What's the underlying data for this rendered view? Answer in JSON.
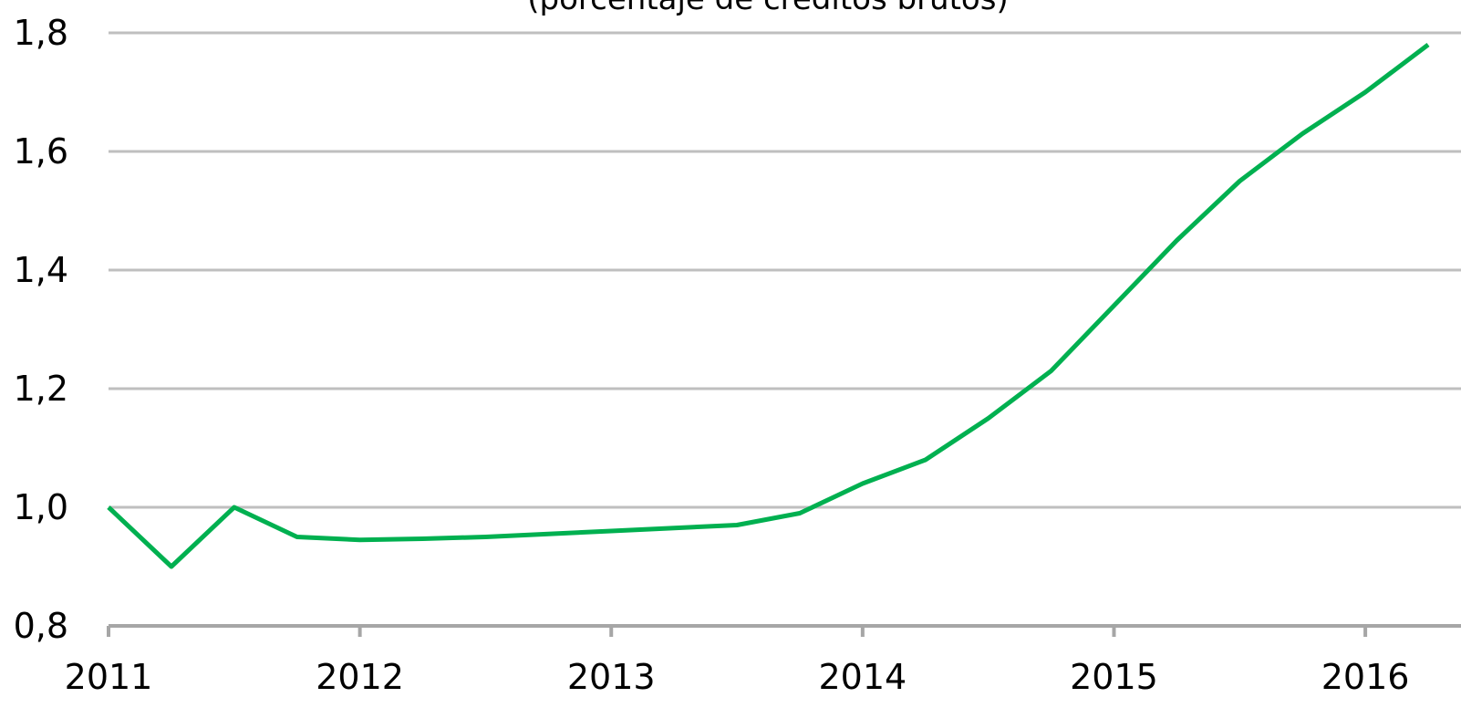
{
  "chart_data": {
    "type": "line",
    "subtitle": "(porcentaje de créditos brutos)",
    "x": [
      2011,
      2011.25,
      2011.5,
      2011.75,
      2012,
      2012.25,
      2012.5,
      2012.75,
      2013,
      2013.25,
      2013.5,
      2013.75,
      2014,
      2014.25,
      2014.5,
      2014.75,
      2015,
      2015.25,
      2015.5,
      2015.75,
      2016,
      2016.25
    ],
    "series": [
      {
        "color": "#00b050",
        "values": [
          1.0,
          0.9,
          1.0,
          0.95,
          0.945,
          0.947,
          0.95,
          0.955,
          0.96,
          0.965,
          0.97,
          0.99,
          1.04,
          1.08,
          1.15,
          1.23,
          1.34,
          1.45,
          1.55,
          1.63,
          1.7,
          1.78
        ]
      }
    ],
    "xlim": [
      2011,
      2016.25
    ],
    "xticks": [
      2011,
      2012,
      2013,
      2014,
      2015,
      2016
    ],
    "ylim": [
      0.8,
      1.8
    ],
    "yticks": [
      {
        "value": 0.8,
        "label": "0,8"
      },
      {
        "value": 1.0,
        "label": "1,0"
      },
      {
        "value": 1.2,
        "label": "1,2"
      },
      {
        "value": 1.4,
        "label": "1,4"
      },
      {
        "value": 1.6,
        "label": "1,6"
      },
      {
        "value": 1.8,
        "label": "1,8"
      }
    ],
    "grid": true
  }
}
